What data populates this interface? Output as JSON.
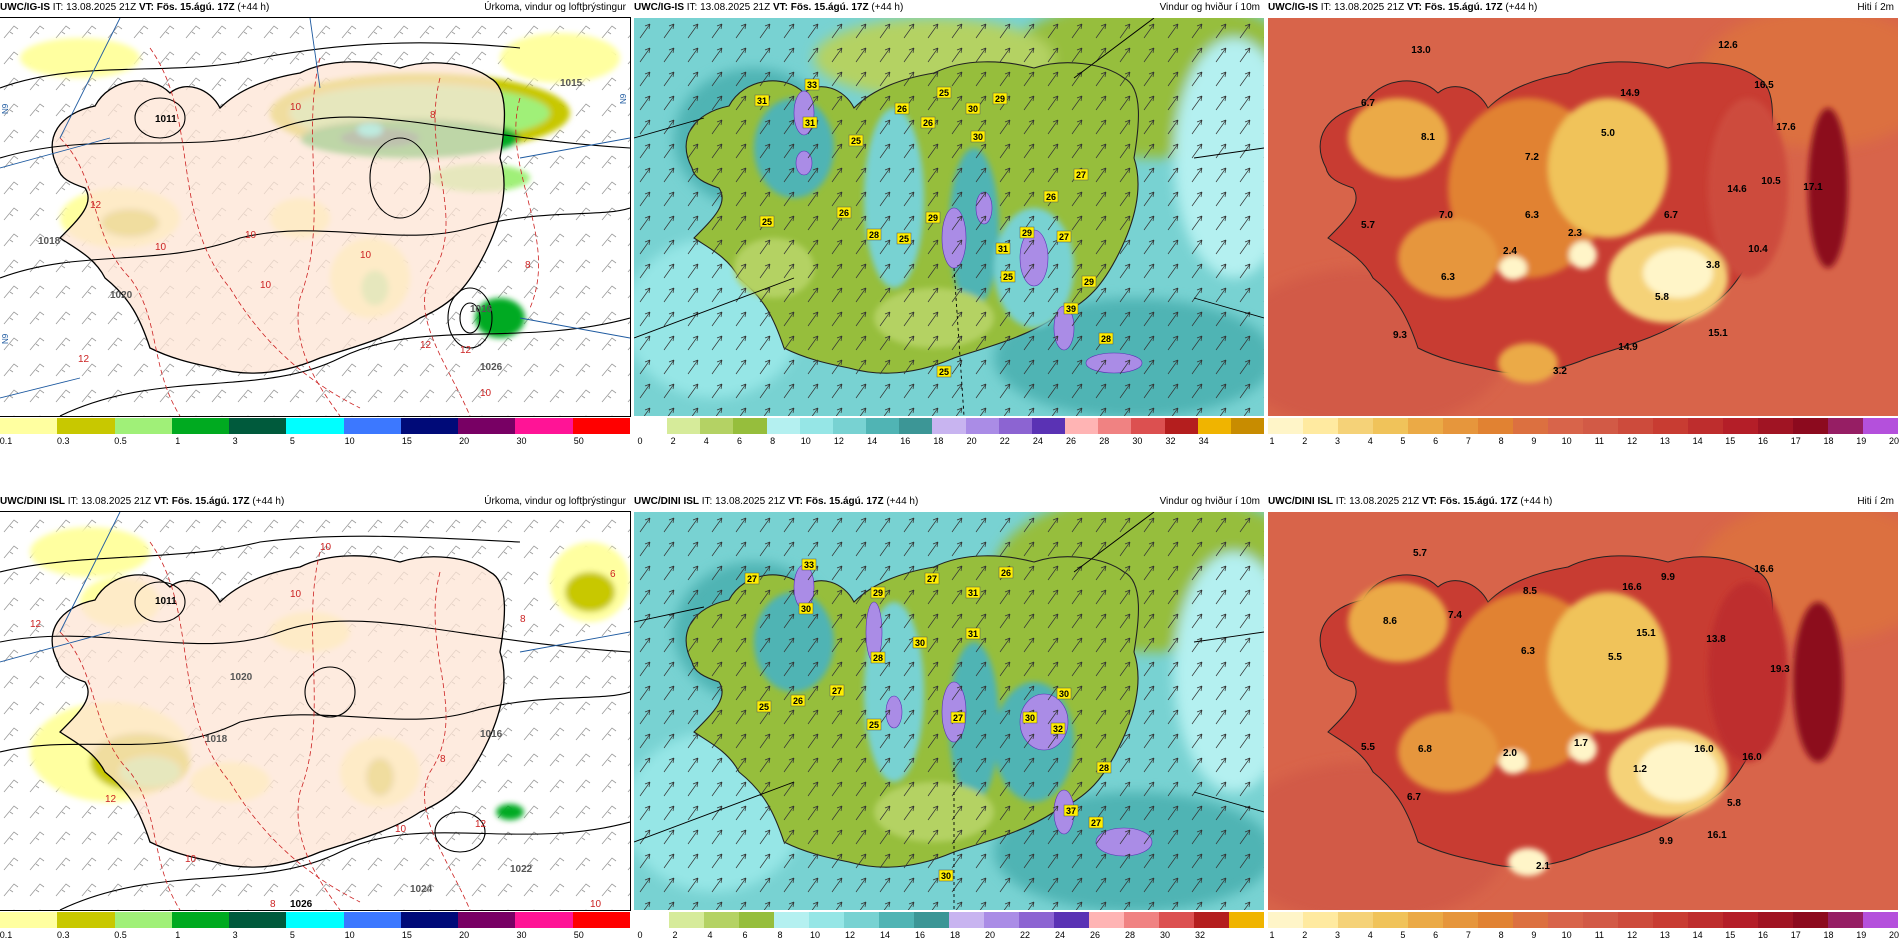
{
  "panels": {
    "p1": {
      "model": "UWC/IG-IS",
      "it": "IT: 13.08.2025 21Z",
      "vt": "VT: Fös. 15.ágú. 17Z",
      "lead": "(+44 h)",
      "variable": "Úrkoma, vindur og loftþrýstingur"
    },
    "p2": {
      "model": "UWC/IG-IS",
      "it": "IT: 13.08.2025 21Z",
      "vt": "VT: Fös. 15.ágú. 17Z",
      "lead": "(+44 h)",
      "variable": "Vindur og hviður í 10m"
    },
    "p3": {
      "model": "UWC/IG-IS",
      "it": "IT: 13.08.2025 21Z",
      "vt": "VT: Fös. 15.ágú. 17Z",
      "lead": "(+44 h)",
      "variable": "Hiti í 2m"
    },
    "p4": {
      "model": "UWC/DINI ISL",
      "it": "IT: 13.08.2025 21Z",
      "vt": "VT: Fös. 15.ágú. 17Z",
      "lead": "(+44 h)",
      "variable": "Úrkoma, vindur og loftþrýstingur"
    },
    "p5": {
      "model": "UWC/DINI ISL",
      "it": "IT: 13.08.2025 21Z",
      "vt": "VT: Fös. 15.ágú. 17Z",
      "lead": "(+44 h)",
      "variable": "Vindur og hviður í 10m"
    },
    "p6": {
      "model": "UWC/DINI ISL",
      "it": "IT: 13.08.2025 21Z",
      "vt": "VT: Fös. 15.ágú. 17Z",
      "lead": "(+44 h)",
      "variable": "Hiti í 2m"
    }
  },
  "colorbars": {
    "precip": {
      "colors": [
        "#ffffa0",
        "#c8c800",
        "#a0f078",
        "#00aa20",
        "#005a3c",
        "#00ffff",
        "#3c78ff",
        "#000a78",
        "#780064",
        "#ff1496",
        "#ff0000"
      ],
      "ticks": [
        "0.1",
        "0.3",
        "0.5",
        "1",
        "3",
        "5",
        "10",
        "15",
        "20",
        "30",
        "50"
      ]
    },
    "wind_top": {
      "colors": [
        "#ffffff",
        "#d6eb9a",
        "#b4d264",
        "#96be3c",
        "#b4f0f0",
        "#96e6e6",
        "#78d2d2",
        "#50b4b4",
        "#3c9696",
        "#c8b4f0",
        "#aa8ce6",
        "#8c64d2",
        "#5a32b4",
        "#ffb4b4",
        "#f08282",
        "#dc5050",
        "#b41e1e",
        "#f0b400",
        "#c88c00"
      ],
      "ticks": [
        "0",
        "2",
        "4",
        "6",
        "8",
        "10",
        "12",
        "14",
        "16",
        "18",
        "20",
        "22",
        "24",
        "26",
        "28",
        "30",
        "32",
        "34"
      ]
    },
    "wind_bottom": {
      "colors": [
        "#ffffff",
        "#d6eb9a",
        "#b4d264",
        "#96be3c",
        "#b4f0f0",
        "#96e6e6",
        "#78d2d2",
        "#50b4b4",
        "#3c9696",
        "#c8b4f0",
        "#aa8ce6",
        "#8c64d2",
        "#5a32b4",
        "#ffb4b4",
        "#f08282",
        "#dc5050",
        "#b41e1e",
        "#f0b400"
      ],
      "ticks": [
        "0",
        "2",
        "4",
        "6",
        "8",
        "10",
        "12",
        "14",
        "16",
        "18",
        "20",
        "22",
        "24",
        "26",
        "28",
        "30",
        "32"
      ]
    },
    "temp": {
      "colors": [
        "#fff5c8",
        "#ffeaa0",
        "#f5d278",
        "#f0c35a",
        "#ebaa46",
        "#e6963c",
        "#e18232",
        "#dc7040",
        "#d8644a",
        "#d25a46",
        "#cd4b3c",
        "#c83c32",
        "#be2d2d",
        "#b41e28",
        "#a01423",
        "#8c0a1e",
        "#961e64",
        "#b450dc"
      ],
      "ticks": [
        "1",
        "2",
        "3",
        "4",
        "5",
        "6",
        "7",
        "8",
        "9",
        "10",
        "11",
        "12",
        "13",
        "14",
        "15",
        "16",
        "17",
        "18",
        "19",
        "20"
      ]
    }
  },
  "map_labels": {
    "p1_isobars": [
      "1011",
      "1018",
      "1016",
      "1020",
      "1026",
      "1015"
    ],
    "p1_isotherms": [
      "10",
      "8",
      "12",
      "10",
      "10",
      "12",
      "10",
      "12",
      "10",
      "8",
      "12",
      "10"
    ],
    "p4_isobars": [
      "1011",
      "1020",
      "1026",
      "1024",
      "1022",
      "1016",
      "1018"
    ],
    "p4_isotherms": [
      "12",
      "10",
      "8",
      "12",
      "10",
      "6",
      "8",
      "10",
      "12",
      "10",
      "8",
      "10"
    ],
    "p2_wind": [
      "33",
      "31",
      "31",
      "25",
      "26",
      "25",
      "26",
      "30",
      "29",
      "30",
      "27",
      "26",
      "25",
      "28",
      "29",
      "25",
      "29",
      "31",
      "26",
      "25",
      "29",
      "27",
      "39",
      "28",
      "25"
    ],
    "p5_wind": [
      "33",
      "27",
      "30",
      "29",
      "27",
      "31",
      "26",
      "31",
      "28",
      "30",
      "25",
      "26",
      "27",
      "25",
      "30",
      "27",
      "30",
      "32",
      "28",
      "37",
      "27",
      "30"
    ],
    "p3_temp": [
      "13.0",
      "12.6",
      "6.7",
      "16.5",
      "8.1",
      "14.9",
      "5.0",
      "7.2",
      "17.6",
      "10.5",
      "17.1",
      "6.3",
      "7.0",
      "14.6",
      "6.7",
      "5.7",
      "2.4",
      "2.3",
      "10.4",
      "3.8",
      "6.3",
      "5.8",
      "9.3",
      "14.9",
      "15.1",
      "3.2"
    ],
    "p6_temp": [
      "5.7",
      "9.9",
      "16.6",
      "8.5",
      "16.6",
      "7.4",
      "8.6",
      "5.5",
      "15.1",
      "13.8",
      "6.3",
      "19.3",
      "5.5",
      "6.8",
      "2.0",
      "1.7",
      "1.2",
      "16.0",
      "16.0",
      "5.8",
      "6.7",
      "9.9",
      "16.1",
      "2.1"
    ]
  },
  "meridian_labels": {
    "n9": "N9",
    "n9b": "N9",
    "n8": "N9"
  }
}
